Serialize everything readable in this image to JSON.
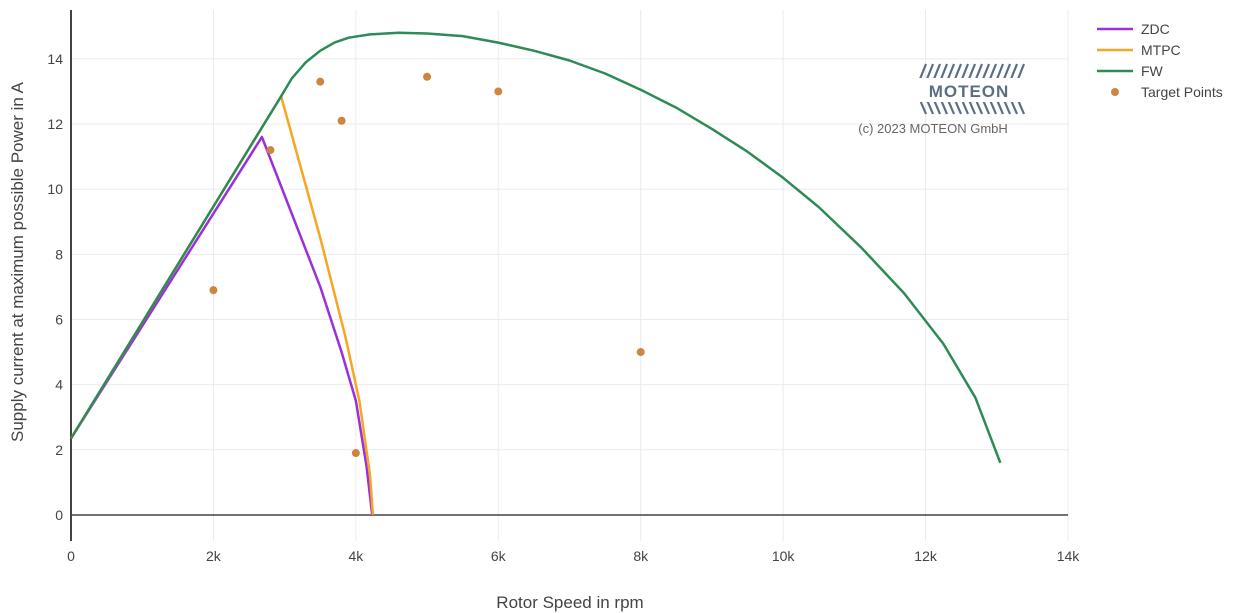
{
  "chart_data": {
    "type": "line",
    "title": "",
    "xlabel": "Rotor Speed in rpm",
    "ylabel": "Supply current at maximum possible Power in A",
    "xlim": [
      0,
      14000
    ],
    "ylim": [
      -0.8,
      15.5
    ],
    "x_ticks": [
      0,
      2000,
      4000,
      6000,
      8000,
      10000,
      12000,
      14000
    ],
    "x_tick_labels": [
      "0",
      "2k",
      "4k",
      "6k",
      "8k",
      "10k",
      "12k",
      "14k"
    ],
    "y_ticks": [
      0,
      2,
      4,
      6,
      8,
      10,
      12,
      14
    ],
    "y_tick_labels": [
      "0",
      "2",
      "4",
      "6",
      "8",
      "10",
      "12",
      "14"
    ],
    "grid": true,
    "legend_position": "top-right",
    "series": [
      {
        "name": "ZDC",
        "type": "line",
        "color": "#9b30d9",
        "x": [
          0,
          2680,
          3500,
          3800,
          4000,
          4150,
          4230
        ],
        "y": [
          2.35,
          11.6,
          7.0,
          5.0,
          3.5,
          1.5,
          0.0
        ]
      },
      {
        "name": "MTPC",
        "type": "line",
        "color": "#f5a623",
        "x": [
          0,
          2950,
          3500,
          3850,
          4050,
          4200,
          4240
        ],
        "y": [
          2.35,
          12.85,
          8.5,
          5.5,
          3.5,
          1.2,
          0.0
        ]
      },
      {
        "name": "FW",
        "type": "line",
        "color": "#2e8b57",
        "x": [
          0,
          2950,
          3100,
          3300,
          3500,
          3700,
          3900,
          4200,
          4600,
          5000,
          5500,
          6000,
          6500,
          7000,
          7500,
          8000,
          8500,
          9000,
          9500,
          10000,
          10500,
          11100,
          11700,
          12250,
          12700,
          13050
        ],
        "y": [
          2.35,
          12.85,
          13.4,
          13.9,
          14.25,
          14.5,
          14.65,
          14.75,
          14.8,
          14.78,
          14.7,
          14.5,
          14.25,
          13.95,
          13.55,
          13.05,
          12.5,
          11.85,
          11.15,
          10.35,
          9.45,
          8.2,
          6.8,
          5.25,
          3.6,
          1.6
        ]
      },
      {
        "name": "Target Points",
        "type": "scatter",
        "color": "#cd853f",
        "x": [
          2000,
          2800,
          3500,
          3800,
          4000,
          5000,
          6000,
          8000
        ],
        "y": [
          6.9,
          11.2,
          13.3,
          12.1,
          1.9,
          13.45,
          13.0,
          5.0
        ]
      }
    ]
  },
  "watermark": {
    "logo": "MOTEON",
    "copyright": "(c) 2023 MOTEON GmbH"
  }
}
